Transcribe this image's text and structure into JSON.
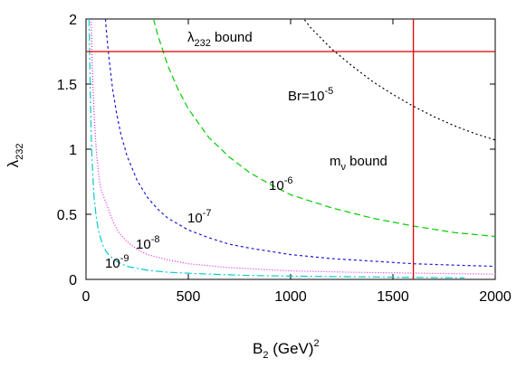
{
  "chart_data": {
    "type": "line",
    "xlabel": {
      "base": "B",
      "sub": "2",
      "rest": " (GeV)",
      "sup": "2"
    },
    "ylabel": {
      "base": "λ",
      "sub": "232"
    },
    "xlim": [
      0,
      2000
    ],
    "ylim": [
      0,
      2
    ],
    "xticks": [
      0,
      500,
      1000,
      1500,
      2000
    ],
    "yticks": [
      0,
      0.5,
      1,
      1.5,
      2
    ],
    "ytick_labels": [
      "0",
      "0.5",
      "1",
      "1.5",
      "2"
    ],
    "grid": false,
    "series": [
      {
        "name": "Br=10^-5",
        "color": "#000000",
        "dash": "2,3",
        "x": [
          1000,
          1100,
          1200,
          1300,
          1400,
          1500,
          1600,
          1700,
          1800,
          1900,
          2000
        ],
        "y": [
          2.13,
          1.93,
          1.77,
          1.64,
          1.52,
          1.42,
          1.33,
          1.25,
          1.18,
          1.12,
          1.07
        ]
      },
      {
        "name": "10^-6",
        "color": "#00cc00",
        "dash": "7,4",
        "x": [
          330,
          350,
          400,
          450,
          500,
          600,
          700,
          800,
          900,
          1000,
          1200,
          1400,
          1600,
          1800,
          2000
        ],
        "y": [
          2.0,
          1.88,
          1.64,
          1.46,
          1.31,
          1.09,
          0.94,
          0.82,
          0.73,
          0.65,
          0.55,
          0.47,
          0.41,
          0.36,
          0.33
        ]
      },
      {
        "name": "10^-7",
        "color": "#1a1ad6",
        "dash": "3,3",
        "x": [
          95,
          100,
          110,
          130,
          150,
          170,
          200,
          250,
          300,
          350,
          400,
          500,
          600,
          700,
          800,
          1000,
          1200,
          1400,
          1600,
          1800,
          2000
        ],
        "y": [
          2.0,
          1.9,
          1.73,
          1.46,
          1.27,
          1.12,
          0.95,
          0.76,
          0.63,
          0.54,
          0.47,
          0.38,
          0.32,
          0.27,
          0.24,
          0.19,
          0.16,
          0.14,
          0.12,
          0.11,
          0.1
        ]
      },
      {
        "name": "10^-8",
        "color": "#e020e0",
        "dash": "1,2",
        "x": [
          25,
          30,
          40,
          50,
          60,
          70,
          80,
          90,
          100,
          130,
          160,
          200,
          250,
          300,
          400,
          500,
          700,
          1000,
          1300,
          1600,
          2000
        ],
        "y": [
          2.0,
          1.66,
          1.25,
          1.0,
          0.83,
          0.72,
          0.66,
          0.62,
          0.58,
          0.45,
          0.36,
          0.29,
          0.23,
          0.19,
          0.15,
          0.12,
          0.09,
          0.065,
          0.055,
          0.048,
          0.04
        ]
      },
      {
        "name": "10^-9",
        "color": "#00cccc",
        "dash": "8,3,2,3",
        "x": [
          15,
          20,
          25,
          30,
          40,
          50,
          60,
          80,
          100,
          130,
          160,
          200,
          300,
          400,
          600,
          800,
          1000,
          1300,
          1600,
          1850
        ],
        "y": [
          2.0,
          1.52,
          1.12,
          0.9,
          0.62,
          0.48,
          0.38,
          0.27,
          0.21,
          0.16,
          0.13,
          0.1,
          0.07,
          0.055,
          0.04,
          0.03,
          0.025,
          0.02,
          0.015,
          0.012
        ]
      }
    ],
    "bounds": {
      "lambda_bound_y": 1.75,
      "m_nu_bound_x": 1600,
      "color": "#e00000"
    },
    "annotations": {
      "lambda_bound": {
        "base": "λ",
        "sub": "232",
        "rest": " bound"
      },
      "br": {
        "base": "Br=10",
        "sup": "-5"
      },
      "mnu_bound": {
        "base": "m",
        "sub": "ν",
        "rest": " bound"
      },
      "e6": {
        "base": "10",
        "sup": "-6"
      },
      "e7": {
        "base": "10",
        "sup": "-7"
      },
      "e8": {
        "base": "10",
        "sup": "-8"
      },
      "e9": {
        "base": "10",
        "sup": "-9"
      }
    }
  }
}
